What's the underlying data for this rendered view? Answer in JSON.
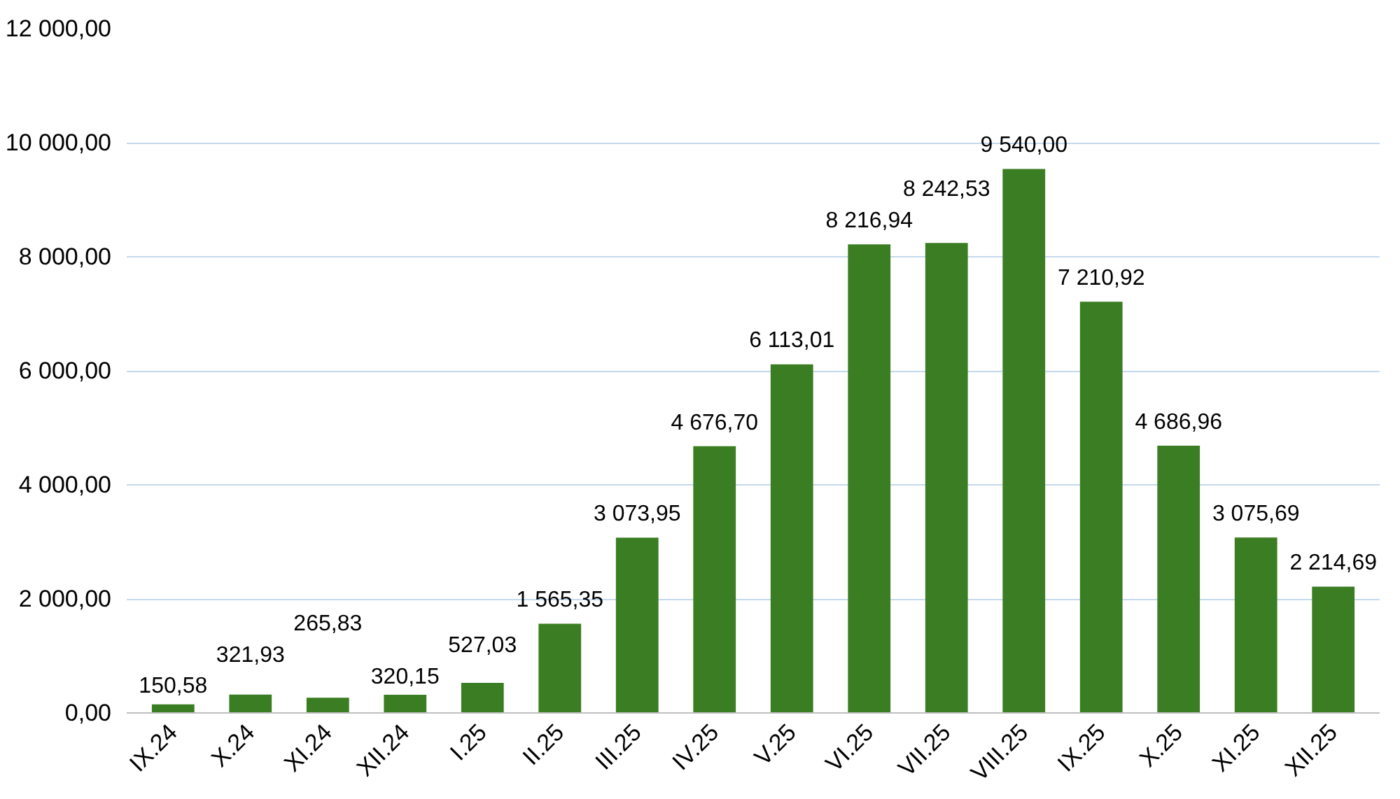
{
  "chart_data": {
    "type": "bar",
    "categories": [
      "IX.24",
      "X.24",
      "XI.24",
      "XII.24",
      "I.25",
      "II.25",
      "III.25",
      "IV.25",
      "V.25",
      "VI.25",
      "VII.25",
      "VIII.25",
      "IX.25",
      "X.25",
      "XI.25",
      "XII.25"
    ],
    "values": [
      150.58,
      321.93,
      265.83,
      320.15,
      527.03,
      1565.35,
      3073.95,
      4676.7,
      6113.01,
      8216.94,
      8242.53,
      9540.0,
      7210.92,
      4686.96,
      3075.69,
      2214.69
    ],
    "value_labels": [
      "150,58",
      "321,93",
      "265,83",
      "320,15",
      "527,03",
      "1 565,35",
      "3 073,95",
      "4 676,70",
      "6 113,01",
      "8 216,94",
      "8 242,53",
      "9 540,00",
      "7 210,92",
      "4 686,96",
      "3 075,69",
      "2 214,69"
    ],
    "color": "#3a7d22",
    "ylim": [
      0,
      12000
    ],
    "yticks": [
      {
        "value": 0,
        "label": "0,00"
      },
      {
        "value": 2000,
        "label": "2 000,00"
      },
      {
        "value": 4000,
        "label": "4 000,00"
      },
      {
        "value": 6000,
        "label": "6 000,00"
      },
      {
        "value": 8000,
        "label": "8 000,00"
      },
      {
        "value": 10000,
        "label": "10 000,00"
      },
      {
        "value": 12000,
        "label": "12 000,00"
      }
    ],
    "grid": "y"
  }
}
